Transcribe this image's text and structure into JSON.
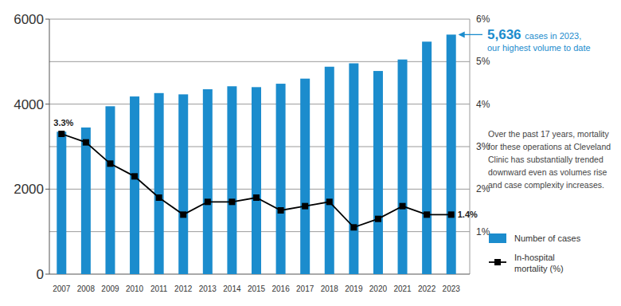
{
  "chart_data": {
    "type": "bar",
    "categories": [
      "2007",
      "2008",
      "2009",
      "2010",
      "2011",
      "2012",
      "2013",
      "2014",
      "2015",
      "2016",
      "2017",
      "2018",
      "2019",
      "2020",
      "2021",
      "2022",
      "2023"
    ],
    "series": [
      {
        "name": "Number of cases",
        "type": "bar",
        "color": "#1b8ccd",
        "values": [
          3350,
          3450,
          3950,
          4180,
          4260,
          4230,
          4350,
          4420,
          4400,
          4480,
          4600,
          4880,
          4960,
          4780,
          5050,
          5470,
          5636
        ]
      },
      {
        "name": "In-hospital mortality (%)",
        "type": "line",
        "axis": "y2",
        "color": "#000000",
        "marker": "square",
        "data_labels": true,
        "values": [
          3.3,
          3.1,
          2.6,
          2.3,
          1.8,
          1.4,
          1.7,
          1.7,
          1.8,
          1.5,
          1.6,
          1.7,
          1.1,
          1.3,
          1.6,
          1.4,
          1.4
        ],
        "value_labels": [
          "3.3%",
          null,
          null,
          null,
          null,
          null,
          null,
          null,
          null,
          null,
          null,
          null,
          null,
          null,
          null,
          null,
          "1.4%"
        ]
      }
    ],
    "ylim": [
      0,
      6000
    ],
    "yticks": [
      0,
      2000,
      4000,
      6000
    ],
    "y2lim": [
      0,
      6
    ],
    "y2ticks": [
      {
        "value": 1,
        "label": "1%"
      },
      {
        "value": 2,
        "label": "2%"
      },
      {
        "value": 3,
        "label": "3%"
      },
      {
        "value": 4,
        "label": "4%"
      },
      {
        "value": 5,
        "label": "5%"
      },
      {
        "value": 6,
        "label": "6%"
      }
    ],
    "grid": true,
    "legend": "lower right",
    "annotations": [
      {
        "label": "5,636",
        "lines": [
          "cases in 2023,",
          "our highest volume to date"
        ],
        "color": "#1b8ccd"
      },
      {
        "lines": [
          "Over the past 17 years, mortality",
          "for these operations at Cleveland",
          "Clinic has substantially trended",
          "downward even as volumes rise",
          "and case complexity increases."
        ]
      }
    ]
  }
}
